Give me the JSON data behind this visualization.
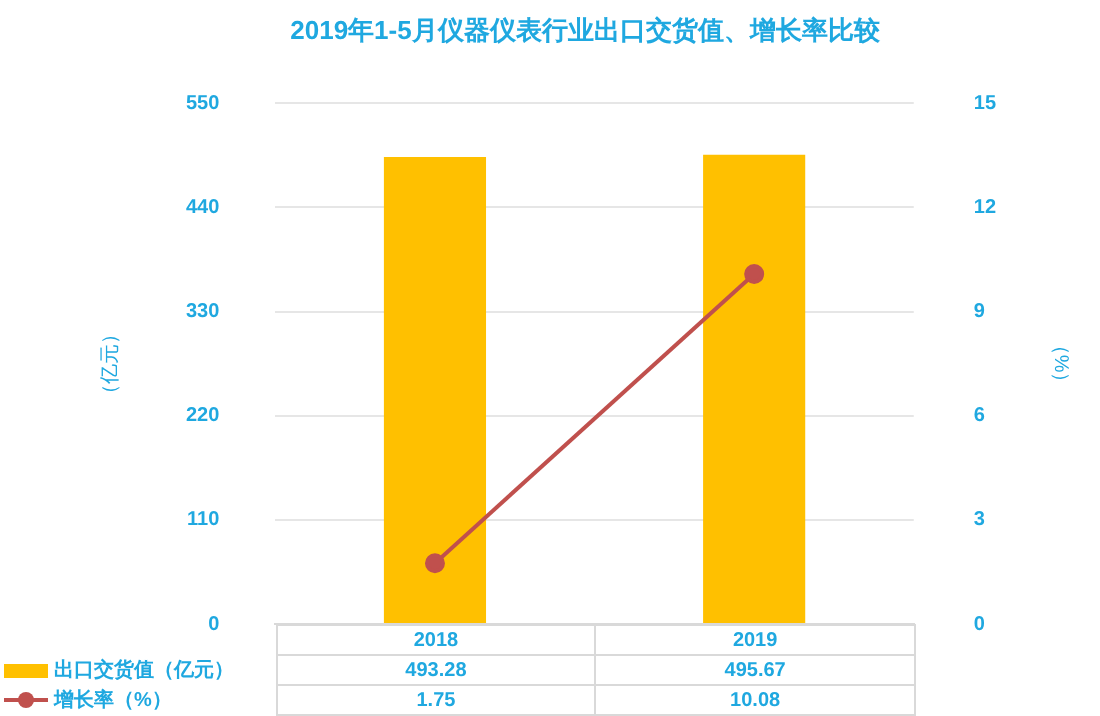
{
  "chart_data": {
    "type": "bar",
    "title": "2019年1-5月仪器仪表行业出口交货值、增长率比较",
    "ylabel": "（亿元）",
    "y2label": "（%）",
    "categories": [
      "2018",
      "2019"
    ],
    "series": [
      {
        "name": "出口交货值（亿元）",
        "color": "#ffc000",
        "values": [
          493.28,
          495.67
        ]
      },
      {
        "name": "增长率（%）",
        "type": "line",
        "axis": "y2",
        "color": "#c0504d",
        "values": [
          1.75,
          10.08
        ],
        "marker": "circle"
      }
    ],
    "ylim": [
      0,
      550
    ],
    "yticks": [
      0,
      110,
      220,
      330,
      440,
      550
    ],
    "y2lim": [
      0,
      15
    ],
    "y2ticks": [
      0,
      3,
      6,
      9,
      12,
      15
    ],
    "grid": "y",
    "legend": "bottom left",
    "data_labels": true
  }
}
